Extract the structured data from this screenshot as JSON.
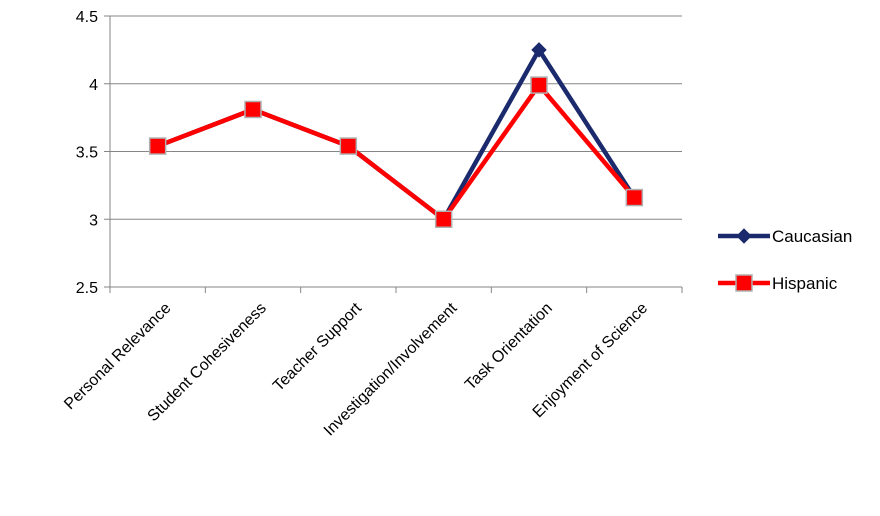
{
  "chart_data": {
    "type": "line",
    "title": "",
    "xlabel": "",
    "ylabel": "",
    "categories": [
      "Personal Relevance",
      "Student Cohesiveness",
      "Teacher Support",
      "Investigation/Involvement",
      "Task Orientation",
      "Enjoyment of Science"
    ],
    "y_ticks": [
      "2.5",
      "3",
      "3.5",
      "4",
      "4.5"
    ],
    "ylim": [
      2.5,
      4.5
    ],
    "grid": "horizontal",
    "legend_position": "right",
    "series": [
      {
        "name": "Caucasian",
        "color": "#1a2a6c",
        "marker": "diamond",
        "values": [
          3.54,
          3.81,
          3.54,
          3.0,
          4.25,
          3.16
        ]
      },
      {
        "name": "Hispanic",
        "color": "#ff0000",
        "marker": "square",
        "values": [
          3.54,
          3.81,
          3.54,
          3.0,
          3.99,
          3.16
        ]
      }
    ]
  }
}
